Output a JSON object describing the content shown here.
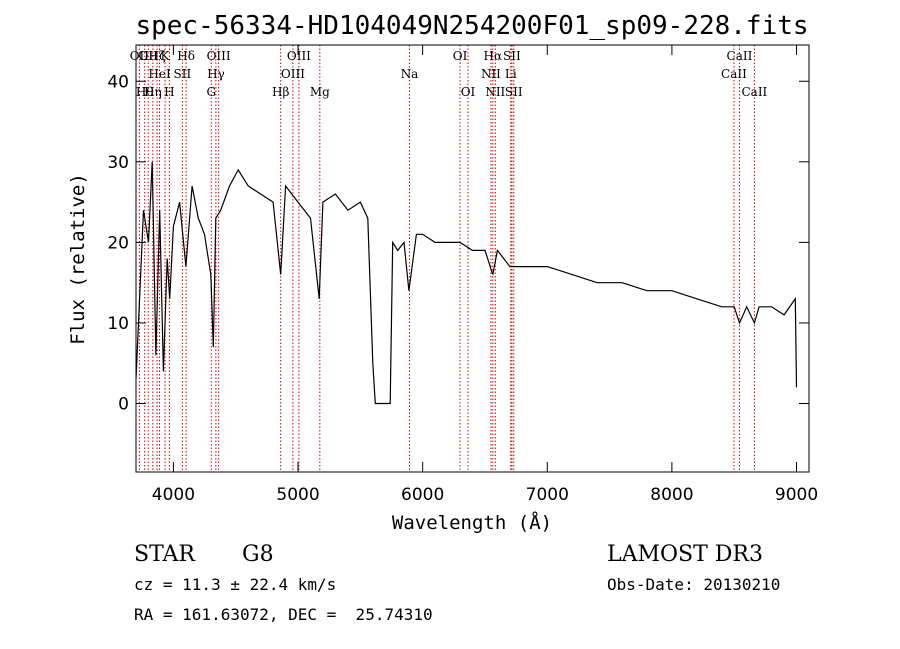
{
  "title": "spec-56334-HD104049N254200F01_sp09-228.fits",
  "footer": {
    "object_class": "STAR",
    "subclass": "G8",
    "survey": "LAMOST DR3",
    "cz": "cz = 11.3 ± 22.4 km/s",
    "obs_date": "Obs-Date: 20130210",
    "coords": "RA = 161.63072, DEC =  25.74310"
  },
  "chart_data": {
    "type": "line",
    "xlabel": "Wavelength (Å)",
    "ylabel": "Flux (relative)",
    "xlim": [
      3700,
      9100
    ],
    "ylim": [
      -8.5,
      44.5
    ],
    "xticks": [
      4000,
      5000,
      6000,
      7000,
      8000,
      9000
    ],
    "yticks": [
      0,
      10,
      20,
      30,
      40
    ],
    "grid": false,
    "spectrum": {
      "x": [
        3700,
        3760,
        3800,
        3830,
        3860,
        3890,
        3920,
        3950,
        3970,
        4000,
        4050,
        4100,
        4150,
        4200,
        4250,
        4300,
        4320,
        4340,
        4380,
        4450,
        4520,
        4600,
        4700,
        4800,
        4861,
        4900,
        5000,
        5100,
        5170,
        5200,
        5300,
        5400,
        5500,
        5560,
        5600,
        5620,
        5740,
        5760,
        5800,
        5850,
        5890,
        5950,
        6000,
        6100,
        6200,
        6300,
        6400,
        6500,
        6563,
        6600,
        6700,
        6800,
        7000,
        7200,
        7400,
        7600,
        7800,
        8000,
        8200,
        8400,
        8500,
        8542,
        8600,
        8662,
        8700,
        8800,
        8900,
        8990,
        9000
      ],
      "y": [
        3,
        24,
        20,
        30,
        6,
        24,
        4,
        18,
        13,
        22,
        25,
        17,
        27,
        23,
        21,
        16,
        7,
        23,
        24,
        27,
        29,
        27,
        26,
        25,
        16,
        27,
        25,
        23,
        13,
        25,
        26,
        24,
        25,
        23,
        5,
        0,
        0,
        20,
        19,
        20,
        14,
        21,
        21,
        20,
        20,
        20,
        19,
        19,
        16,
        19,
        17,
        17,
        17,
        16,
        15,
        15,
        14,
        14,
        13,
        12,
        12,
        10,
        12,
        10,
        12,
        12,
        11,
        13,
        2
      ]
    },
    "lines": [
      {
        "wl": 3727,
        "label": "OII",
        "row": 0
      },
      {
        "wl": 3770,
        "label": "Hθ",
        "row": 2
      },
      {
        "wl": 3798,
        "label": "OII",
        "row": 0
      },
      {
        "wl": 3835,
        "label": "Hη",
        "row": 2
      },
      {
        "wl": 3869,
        "label": "Hζ",
        "row": 0
      },
      {
        "wl": 3889,
        "label": "HeI",
        "row": 1
      },
      {
        "wl": 3933,
        "label": "K",
        "row": 0
      },
      {
        "wl": 3968,
        "label": "H",
        "row": 2
      },
      {
        "wl": 4072,
        "label": "SII",
        "row": 1
      },
      {
        "wl": 4102,
        "label": "Hδ",
        "row": 0
      },
      {
        "wl": 4304,
        "label": "G",
        "row": 2
      },
      {
        "wl": 4341,
        "label": "Hγ",
        "row": 1
      },
      {
        "wl": 4363,
        "label": "OIII",
        "row": 0
      },
      {
        "wl": 4861,
        "label": "Hβ",
        "row": 2
      },
      {
        "wl": 4959,
        "label": "OIII",
        "row": 1
      },
      {
        "wl": 5007,
        "label": "OIII",
        "row": 0
      },
      {
        "wl": 5175,
        "label": "Mg",
        "row": 2
      },
      {
        "wl": 5894,
        "label": "Na",
        "row": 1
      },
      {
        "wl": 6300,
        "label": "OI",
        "row": 0
      },
      {
        "wl": 6364,
        "label": "OI",
        "row": 2
      },
      {
        "wl": 6548,
        "label": "NII",
        "row": 1
      },
      {
        "wl": 6563,
        "label": "Hα",
        "row": 0
      },
      {
        "wl": 6583,
        "label": "NII",
        "row": 2
      },
      {
        "wl": 6707,
        "label": "Li",
        "row": 1
      },
      {
        "wl": 6716,
        "label": "SII",
        "row": 0
      },
      {
        "wl": 6731,
        "label": "SII",
        "row": 2
      },
      {
        "wl": 8498,
        "label": "CaII",
        "row": 1
      },
      {
        "wl": 8542,
        "label": "CaII",
        "row": 0
      },
      {
        "wl": 8662,
        "label": "CaII",
        "row": 2
      }
    ],
    "line_color": "#cc0000",
    "spectrum_color": "#000000"
  }
}
